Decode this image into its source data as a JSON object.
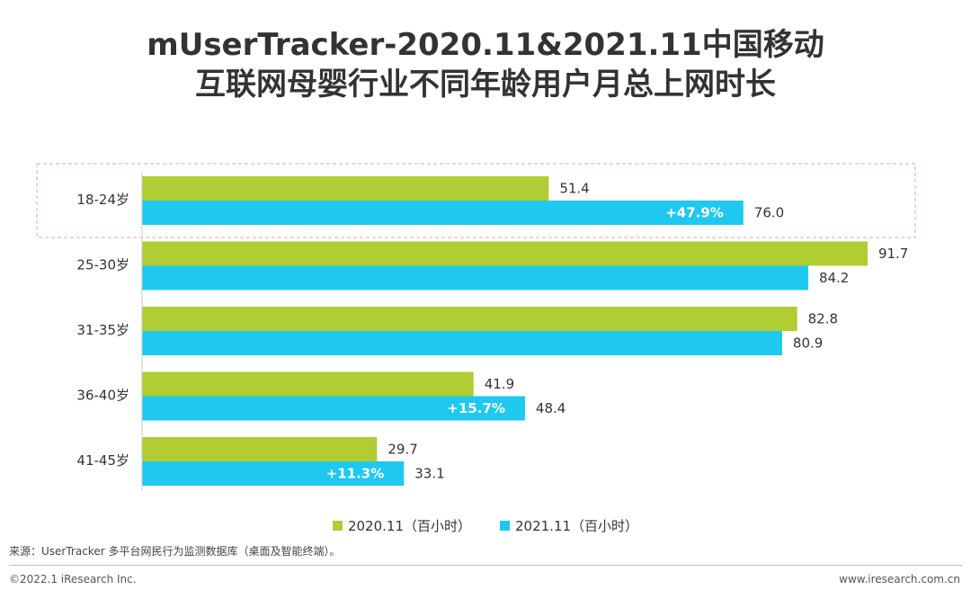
{
  "title": {
    "line1": "mUserTracker-2020.11&2021.11中国移动",
    "line2": "互联网母婴行业不同年龄用户月总上网时长"
  },
  "chart_data": {
    "type": "bar",
    "orientation": "horizontal",
    "categories": [
      "18-24岁",
      "25-30岁",
      "31-35岁",
      "36-40岁",
      "41-45岁"
    ],
    "series": [
      {
        "name": "2020.11（百小时）",
        "color": "#b0cd33",
        "values": [
          51.4,
          91.7,
          82.8,
          41.9,
          29.7
        ]
      },
      {
        "name": "2021.11（百小时）",
        "color": "#1ec8ef",
        "values": [
          76.0,
          84.2,
          80.9,
          48.4,
          33.1
        ]
      }
    ],
    "growth_labels": [
      "+47.9%",
      "",
      "",
      "+15.7%",
      "+11.3%"
    ],
    "highlighted_category": "18-24岁",
    "xlim": [
      0,
      100
    ],
    "grid": false,
    "legend_position": "bottom"
  },
  "footer": {
    "source": "来源：UserTracker 多平台网民行为监测数据库（桌面及智能终端）。",
    "copyright": "©2022.1 iResearch Inc.",
    "website": "www.iresearch.com.cn"
  }
}
